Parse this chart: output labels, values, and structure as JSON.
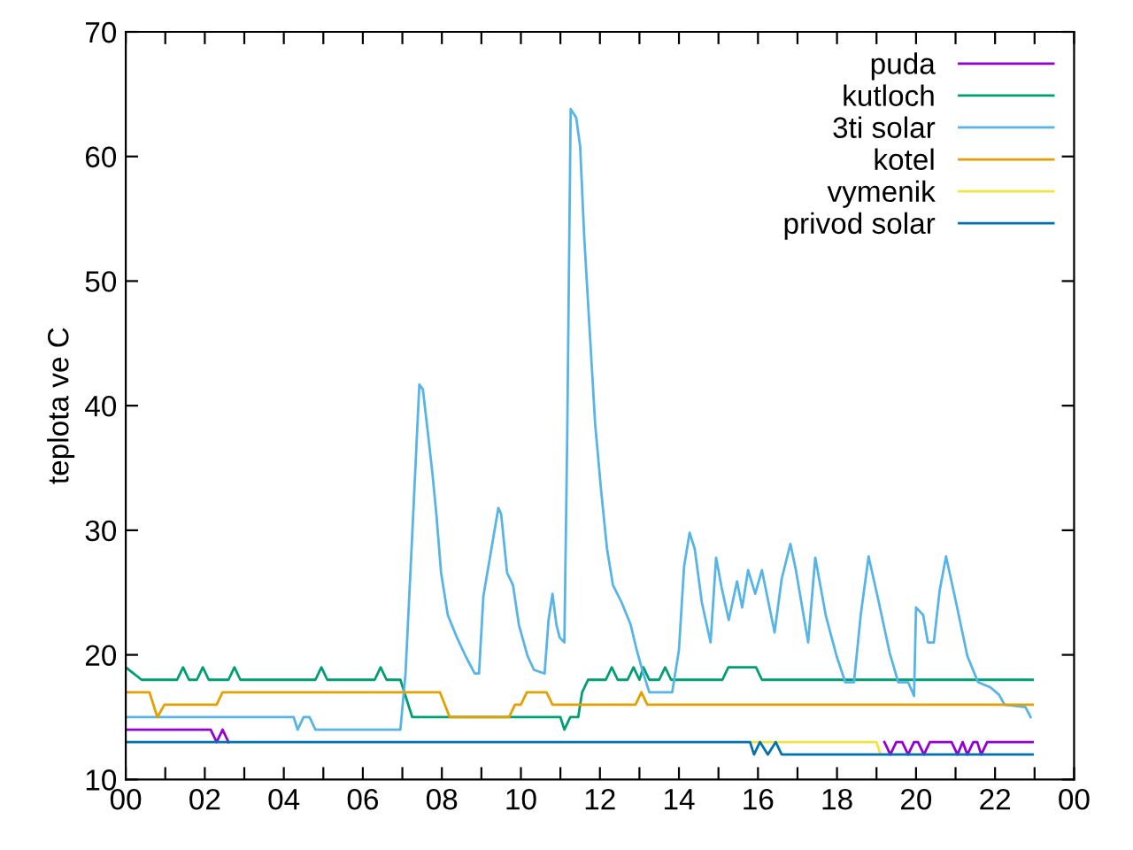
{
  "chart_data": {
    "type": "line",
    "ylabel": "teplota ve C",
    "xlim": [
      0,
      24
    ],
    "ylim": [
      10,
      70
    ],
    "xticks": [
      {
        "value": 0,
        "label": "00"
      },
      {
        "value": 1,
        "label": null
      },
      {
        "value": 2,
        "label": "02"
      },
      {
        "value": 3,
        "label": null
      },
      {
        "value": 4,
        "label": "04"
      },
      {
        "value": 5,
        "label": null
      },
      {
        "value": 6,
        "label": "06"
      },
      {
        "value": 7,
        "label": null
      },
      {
        "value": 8,
        "label": "08"
      },
      {
        "value": 9,
        "label": null
      },
      {
        "value": 10,
        "label": "10"
      },
      {
        "value": 11,
        "label": null
      },
      {
        "value": 12,
        "label": "12"
      },
      {
        "value": 13,
        "label": null
      },
      {
        "value": 14,
        "label": "14"
      },
      {
        "value": 15,
        "label": null
      },
      {
        "value": 16,
        "label": "16"
      },
      {
        "value": 17,
        "label": null
      },
      {
        "value": 18,
        "label": "18"
      },
      {
        "value": 19,
        "label": null
      },
      {
        "value": 20,
        "label": "20"
      },
      {
        "value": 21,
        "label": null
      },
      {
        "value": 22,
        "label": "22"
      },
      {
        "value": 23,
        "label": null
      },
      {
        "value": 24,
        "label": "00"
      }
    ],
    "yticks": [
      10,
      20,
      30,
      40,
      50,
      60,
      70
    ],
    "legend": "top right",
    "grid": false,
    "marker": "none",
    "line_style": "solid",
    "series": [
      {
        "name": "puda",
        "color": "#9400d3",
        "x": [
          0,
          2.15,
          2.3,
          2.45,
          2.6,
          19.0,
          19.2,
          19.35,
          19.5,
          19.65,
          19.8,
          19.95,
          20.05,
          20.2,
          20.35,
          20.9,
          21.05,
          21.18,
          21.3,
          21.45,
          21.55,
          21.65,
          21.8,
          22.95
        ],
        "values": [
          14,
          14,
          13,
          14,
          13,
          null,
          13,
          12,
          13,
          13,
          12,
          13,
          13,
          12,
          13,
          13,
          12,
          13,
          12,
          13,
          13,
          12,
          13,
          13
        ]
      },
      {
        "name": "kutloch",
        "color": "#009e73",
        "x": [
          0,
          0.4,
          1.3,
          1.45,
          1.6,
          1.8,
          1.95,
          2.1,
          2.6,
          2.75,
          2.9,
          4.8,
          4.95,
          5.1,
          6.3,
          6.45,
          6.6,
          6.95,
          7.25,
          11.0,
          11.1,
          11.25,
          11.45,
          11.55,
          11.7,
          12.15,
          12.3,
          12.45,
          12.7,
          12.85,
          13.0,
          13.1,
          13.25,
          13.5,
          13.65,
          13.8,
          15.1,
          15.25,
          15.95,
          16.1,
          22.95
        ],
        "values": [
          19,
          18,
          18,
          19,
          18,
          18,
          19,
          18,
          18,
          19,
          18,
          18,
          19,
          18,
          18,
          19,
          18,
          18,
          15,
          15,
          14,
          15,
          15,
          17,
          18,
          18,
          19,
          18,
          18,
          19,
          18,
          19,
          18,
          18,
          19,
          18,
          18,
          19,
          19,
          18,
          18
        ]
      },
      {
        "name": "3ti solar",
        "color": "#56b4e9",
        "x": [
          0,
          4.25,
          4.35,
          4.5,
          4.65,
          4.8,
          6.95,
          7.08,
          7.26,
          7.43,
          7.52,
          7.64,
          7.76,
          7.86,
          7.98,
          8.15,
          8.38,
          8.6,
          8.83,
          8.94,
          9.05,
          9.2,
          9.43,
          9.5,
          9.65,
          9.8,
          9.95,
          10.17,
          10.33,
          10.6,
          10.7,
          10.8,
          10.9,
          10.98,
          11.1,
          11.17,
          11.26,
          11.4,
          11.5,
          11.6,
          11.73,
          11.88,
          12.03,
          12.18,
          12.33,
          12.55,
          12.78,
          12.93,
          13.07,
          13.25,
          13.83,
          14.0,
          14.13,
          14.27,
          14.4,
          14.58,
          14.8,
          14.94,
          15.08,
          15.26,
          15.47,
          15.6,
          15.75,
          15.93,
          16.1,
          16.42,
          16.6,
          16.82,
          16.96,
          17.27,
          17.45,
          17.72,
          17.99,
          18.21,
          18.43,
          18.6,
          18.8,
          19.06,
          19.33,
          19.55,
          19.8,
          19.95,
          20.0,
          20.18,
          20.3,
          20.45,
          20.6,
          20.76,
          20.98,
          21.3,
          21.57,
          21.88,
          22.1,
          22.24,
          22.77,
          22.9
        ],
        "values": [
          15,
          15,
          14,
          15,
          15,
          14,
          14,
          18.5,
          30.3,
          41.7,
          41.3,
          38.0,
          34.6,
          31.3,
          26.6,
          23.2,
          21.4,
          19.9,
          18.5,
          18.5,
          24.7,
          27.5,
          31.8,
          31.3,
          26.6,
          25.6,
          22.4,
          19.9,
          18.8,
          18.5,
          22.8,
          24.9,
          22.4,
          21.4,
          21.0,
          37.0,
          63.8,
          63.1,
          60.8,
          53.7,
          46.6,
          38.5,
          33.2,
          28.5,
          25.6,
          24.2,
          22.4,
          20.4,
          18.8,
          17,
          17,
          20.4,
          27.1,
          29.8,
          28.5,
          24.2,
          21.0,
          27.8,
          25.4,
          22.8,
          25.9,
          23.8,
          26.8,
          24.9,
          26.8,
          21.8,
          26.1,
          28.9,
          26.8,
          21.0,
          27.8,
          23.1,
          19.9,
          17.8,
          17.8,
          23.2,
          27.9,
          24.2,
          20.2,
          17.8,
          17.8,
          16.7,
          23.8,
          23.2,
          21.0,
          21.0,
          25.2,
          27.9,
          24.7,
          19.9,
          17.8,
          17.4,
          16.8,
          16.0,
          15.8,
          15
        ]
      },
      {
        "name": "kotel",
        "color": "#e69f00",
        "x": [
          0,
          0.6,
          0.8,
          0.98,
          2.3,
          2.45,
          7.95,
          8.2,
          9.7,
          9.85,
          10.0,
          10.15,
          10.65,
          10.8,
          12.9,
          13.05,
          13.2,
          22.95
        ],
        "values": [
          17,
          17,
          15,
          16,
          16,
          17,
          17,
          15,
          15,
          16,
          16,
          17,
          17,
          16,
          16,
          17,
          16,
          16
        ]
      },
      {
        "name": "vymenik",
        "color": "#f0e442",
        "x": [
          15.8,
          19.0,
          19.1
        ],
        "values": [
          13,
          13,
          12
        ]
      },
      {
        "name": "privod solar",
        "color": "#0072b2",
        "x": [
          0,
          15.8,
          15.9,
          16.05,
          16.25,
          16.45,
          16.6,
          22.95
        ],
        "values": [
          13,
          13,
          12,
          13,
          12,
          13,
          12,
          12
        ]
      }
    ]
  }
}
